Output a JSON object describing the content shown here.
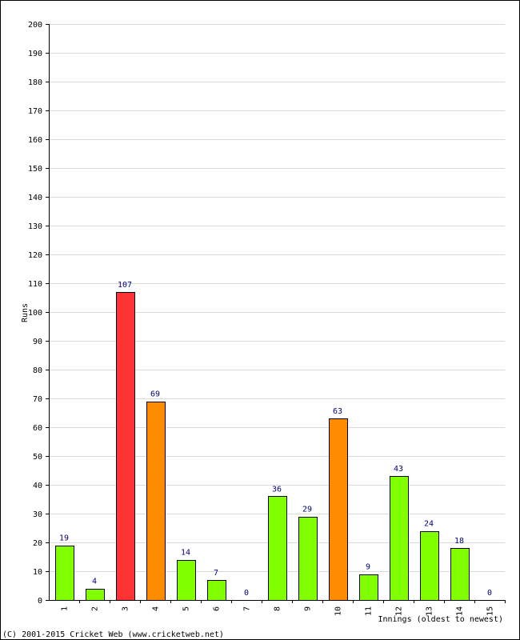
{
  "chart_data": {
    "type": "bar",
    "ylabel": "Runs",
    "xlabel": "Innings (oldest to newest)",
    "ylim": [
      0,
      200
    ],
    "ytick_step": 10,
    "grid": true,
    "categories": [
      "1",
      "2",
      "3",
      "4",
      "5",
      "6",
      "7",
      "8",
      "9",
      "10",
      "11",
      "12",
      "13",
      "14",
      "15"
    ],
    "values": [
      19,
      4,
      107,
      69,
      14,
      7,
      0,
      36,
      29,
      63,
      9,
      43,
      24,
      18,
      0
    ],
    "bar_colors": [
      "#80ff00",
      "#80ff00",
      "#ff3333",
      "#ff8c00",
      "#80ff00",
      "#80ff00",
      "#80ff00",
      "#80ff00",
      "#80ff00",
      "#ff8c00",
      "#80ff00",
      "#80ff00",
      "#80ff00",
      "#80ff00",
      "#80ff00"
    ]
  },
  "footer": {
    "copyright": "(C) 2001-2015 Cricket Web (www.cricketweb.net)"
  },
  "colors": {
    "grid": "#d9d9d9",
    "axis": "#000000",
    "label": "#000080"
  }
}
